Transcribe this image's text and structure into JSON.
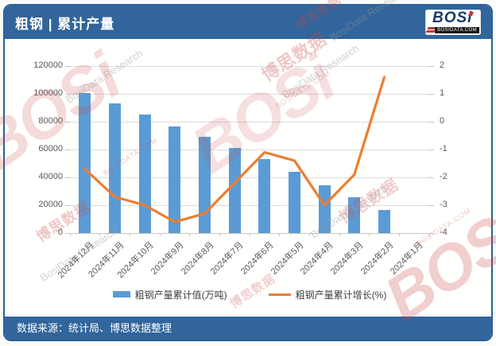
{
  "header": {
    "title": "粗钢 | 累计产量"
  },
  "logo": {
    "brand": "BOSi",
    "domain": "BOSIDATA.COM"
  },
  "footer": {
    "source": "数据来源：统计局、博思数据整理"
  },
  "watermark": {
    "logo_text": "BOSi",
    "cn_text": "博思数据",
    "en_text": "BosiData Research",
    "domain_text": "BOSIDATA.COM"
  },
  "colors": {
    "header_bg": "#31659B",
    "footer_bg": "#31659B",
    "card_border": "#2C5F95",
    "bar": "#5B9BD5",
    "line": "#ED7D31",
    "gridline": "#DCDCDC",
    "axis_line": "#C6C6C6",
    "axis_text": "#595959",
    "watermark_red": "#C94A4A",
    "watermark_gray": "#9A9A9A"
  },
  "chart_data": {
    "type": "bar",
    "title": "粗钢 | 累计产量",
    "categories": [
      "2024年12月",
      "2024年11月",
      "2024年10月",
      "2024年9月",
      "2024年8月",
      "2024年7月",
      "2024年6月",
      "2024年5月",
      "2024年4月",
      "2024年3月",
      "2024年2月",
      "2024年1月"
    ],
    "series": [
      {
        "name": "粗钢产量累计值(万吨)",
        "type": "bar",
        "axis": "left",
        "color": "#5B9BD5",
        "values": [
          100509,
          92919,
          85073,
          76848,
          69141,
          61372,
          53057,
          43861,
          34367,
          25655,
          16796,
          null
        ]
      },
      {
        "name": "粗钢产量累计增长(%)",
        "type": "line",
        "axis": "right",
        "color": "#ED7D31",
        "values": [
          -1.7,
          -2.7,
          -3.0,
          -3.6,
          -3.3,
          -2.2,
          -1.1,
          -1.4,
          -3.0,
          -1.9,
          1.6,
          null
        ]
      }
    ],
    "left_axis": {
      "min": 0,
      "max": 120000,
      "step": 20000,
      "ticks": [
        "0",
        "20000",
        "40000",
        "60000",
        "80000",
        "100000",
        "120000"
      ]
    },
    "right_axis": {
      "min": -4,
      "max": 2,
      "step": 1,
      "ticks": [
        "-4",
        "-3",
        "-2",
        "-1",
        "0",
        "1",
        "2"
      ]
    },
    "grid": true,
    "legend_position": "bottom",
    "xlabel": "",
    "ylabel_left": "万吨",
    "ylabel_right": "%"
  }
}
